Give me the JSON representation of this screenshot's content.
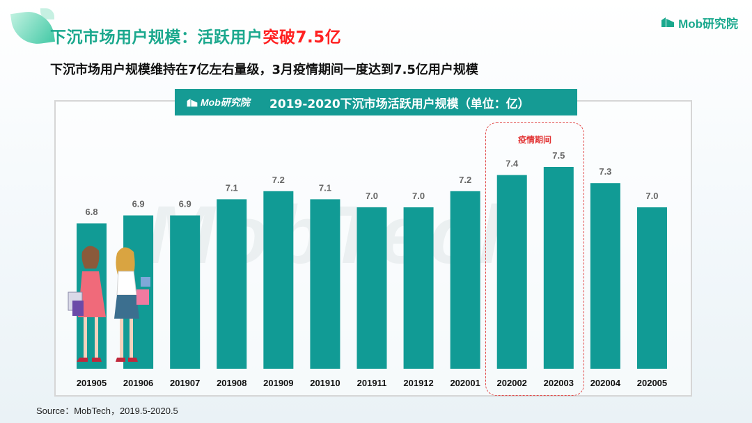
{
  "header": {
    "title_main": "下沉市场用户规模：活跃用户",
    "title_highlight": "突破7.5亿",
    "subtitle": "下沉市场用户规模维持在7亿左右量级，3月疫情期间一度达到7.5亿用户规模"
  },
  "brand": {
    "name": "Mob研究院",
    "color": "#1aa88d"
  },
  "chart_header": {
    "logo": "Mob研究院",
    "title": "2019-2020下沉市场活跃用户规模（单位：亿）"
  },
  "watermark": "MobTech",
  "annotation": {
    "label": "疫情期间",
    "categories": [
      "202002",
      "202003"
    ],
    "color": "#e24a4a"
  },
  "source": "Source：MobTech，2019.5-2020.5",
  "chart_data": {
    "type": "bar",
    "title": "2019-2020下沉市场活跃用户规模（单位：亿）",
    "categories": [
      "201905",
      "201906",
      "201907",
      "201908",
      "201909",
      "201910",
      "201911",
      "201912",
      "202001",
      "202002",
      "202003",
      "202004",
      "202005"
    ],
    "values": [
      6.8,
      6.9,
      6.9,
      7.1,
      7.2,
      7.1,
      7.0,
      7.0,
      7.2,
      7.4,
      7.5,
      7.3,
      7.0
    ],
    "value_labels": [
      "6.8",
      "6.9",
      "6.9",
      "7.1",
      "7.2",
      "7.1",
      "7.0",
      "7.0",
      "7.2",
      "7.4",
      "7.5",
      "7.3",
      "7.0"
    ],
    "bar_color": "#119b95",
    "ylim": [
      0,
      8
    ],
    "grid": false,
    "legend": "none"
  },
  "colors": {
    "accent": "#1aa88d",
    "highlight": "#ff2020",
    "chart_header_bg": "#159b94",
    "bar": "#119b95"
  },
  "icons": [
    "leaf-decoration",
    "mob-logo-icon",
    "shoppers-illustration"
  ]
}
